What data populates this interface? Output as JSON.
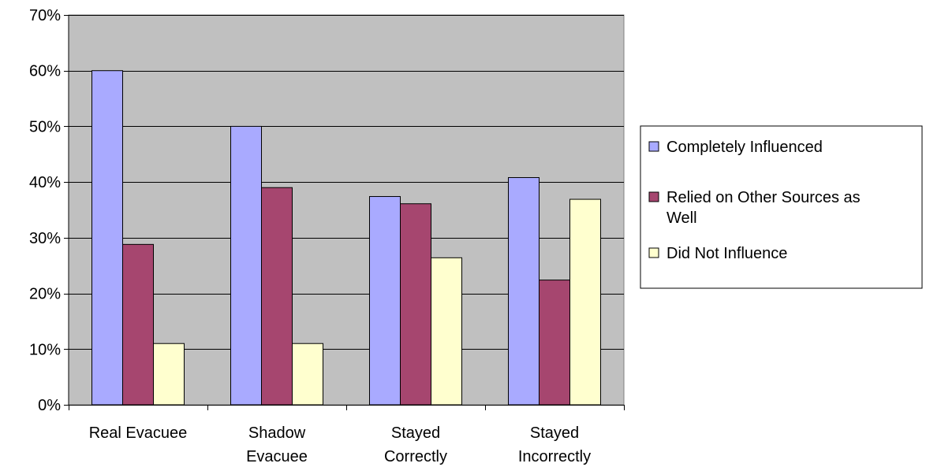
{
  "chart_data": {
    "type": "bar",
    "title": "",
    "xlabel": "",
    "ylabel": "",
    "categories": [
      [
        "Real Evacuee"
      ],
      [
        "Shadow",
        "Evacuee"
      ],
      [
        "Stayed",
        "Correctly"
      ],
      [
        "Stayed",
        "Incorrectly"
      ]
    ],
    "series": [
      {
        "name": "Completely Influenced",
        "values": [
          0.6,
          0.5,
          0.374,
          0.408
        ],
        "color": "#a9aaff"
      },
      {
        "name_lines": [
          "Relied on Other Sources as",
          "Well"
        ],
        "name": "Relied on Other Sources as Well",
        "values": [
          0.288,
          0.39,
          0.361,
          0.224
        ],
        "color": "#a6466f"
      },
      {
        "name": "Did Not Influence",
        "values": [
          0.11,
          0.11,
          0.264,
          0.369
        ],
        "color": "#ffffcf"
      }
    ],
    "ylim": [
      0,
      0.7
    ],
    "yticks": [
      0,
      0.1,
      0.2,
      0.3,
      0.4,
      0.5,
      0.6,
      0.7
    ],
    "ytick_labels": [
      "0%",
      "10%",
      "20%",
      "30%",
      "40%",
      "50%",
      "60%",
      "70%"
    ],
    "grid": true,
    "plot_background": "#c0c0c0",
    "legend_position": "right"
  }
}
